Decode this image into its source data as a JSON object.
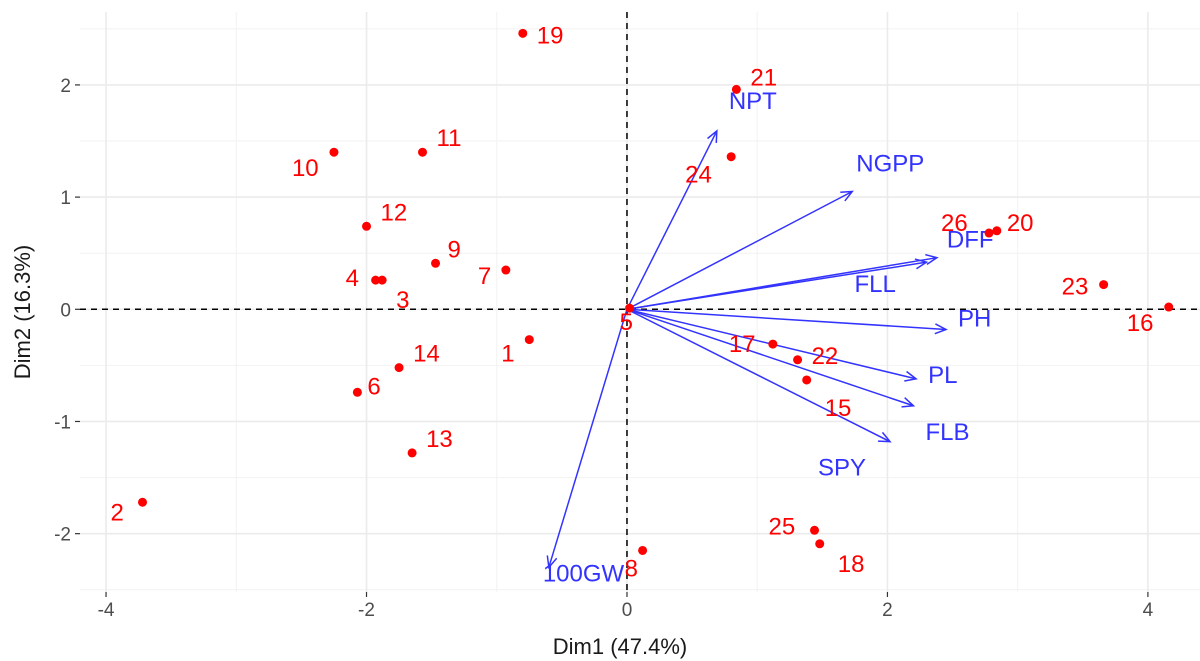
{
  "chart_data": {
    "type": "scatter",
    "title": "",
    "xlabel": "Dim1 (47.4%)",
    "ylabel": "Dim2 (16.3%)",
    "xlim": [
      -4.2,
      4.4
    ],
    "ylim": [
      -2.52,
      2.65
    ],
    "xticks": [
      -4,
      -2,
      0,
      2,
      4
    ],
    "yticks": [
      -2,
      -1,
      0,
      1,
      2
    ],
    "grid": true,
    "reference_lines": {
      "x": 0,
      "y": 0,
      "style": "dashed"
    },
    "colors": {
      "individuals": "#ff0000",
      "variables": "#3333ff"
    },
    "individuals": [
      {
        "label": "1",
        "x": -0.75,
        "y": -0.27
      },
      {
        "label": "2",
        "x": -3.72,
        "y": -1.72
      },
      {
        "label": "3",
        "x": -1.88,
        "y": 0.26
      },
      {
        "label": "4",
        "x": -1.93,
        "y": 0.26
      },
      {
        "label": "5",
        "x": 0.02,
        "y": 0.01
      },
      {
        "label": "6",
        "x": -2.07,
        "y": -0.74
      },
      {
        "label": "7",
        "x": -0.93,
        "y": 0.35
      },
      {
        "label": "8",
        "x": 0.12,
        "y": -2.15
      },
      {
        "label": "9",
        "x": -1.47,
        "y": 0.41
      },
      {
        "label": "10",
        "x": -2.25,
        "y": 1.4
      },
      {
        "label": "11",
        "x": -1.57,
        "y": 1.4
      },
      {
        "label": "12",
        "x": -2.0,
        "y": 0.74
      },
      {
        "label": "13",
        "x": -1.65,
        "y": -1.28
      },
      {
        "label": "14",
        "x": -1.75,
        "y": -0.52
      },
      {
        "label": "15",
        "x": 1.38,
        "y": -0.63
      },
      {
        "label": "16",
        "x": 4.16,
        "y": 0.02
      },
      {
        "label": "17",
        "x": 1.12,
        "y": -0.31
      },
      {
        "label": "18",
        "x": 1.48,
        "y": -2.09
      },
      {
        "label": "19",
        "x": -0.8,
        "y": 2.46
      },
      {
        "label": "20",
        "x": 2.84,
        "y": 0.7
      },
      {
        "label": "21",
        "x": 0.84,
        "y": 1.96
      },
      {
        "label": "22",
        "x": 1.31,
        "y": -0.45
      },
      {
        "label": "23",
        "x": 3.66,
        "y": 0.22
      },
      {
        "label": "24",
        "x": 0.8,
        "y": 1.36
      },
      {
        "label": "25",
        "x": 1.44,
        "y": -1.97
      },
      {
        "label": "26",
        "x": 2.78,
        "y": 0.68
      }
    ],
    "variables": [
      {
        "label": "NPT",
        "x": 0.69,
        "y": 1.59
      },
      {
        "label": "NGPP",
        "x": 1.73,
        "y": 1.05
      },
      {
        "label": "DFF",
        "x": 2.38,
        "y": 0.46
      },
      {
        "label": "FLL",
        "x": 2.3,
        "y": 0.42
      },
      {
        "label": "PH",
        "x": 2.45,
        "y": -0.18
      },
      {
        "label": "PL",
        "x": 2.22,
        "y": -0.62
      },
      {
        "label": "FLB",
        "x": 2.2,
        "y": -0.86
      },
      {
        "label": "SPY",
        "x": 2.02,
        "y": -1.18
      },
      {
        "label": "100GW",
        "x": -0.6,
        "y": -2.3
      }
    ]
  }
}
